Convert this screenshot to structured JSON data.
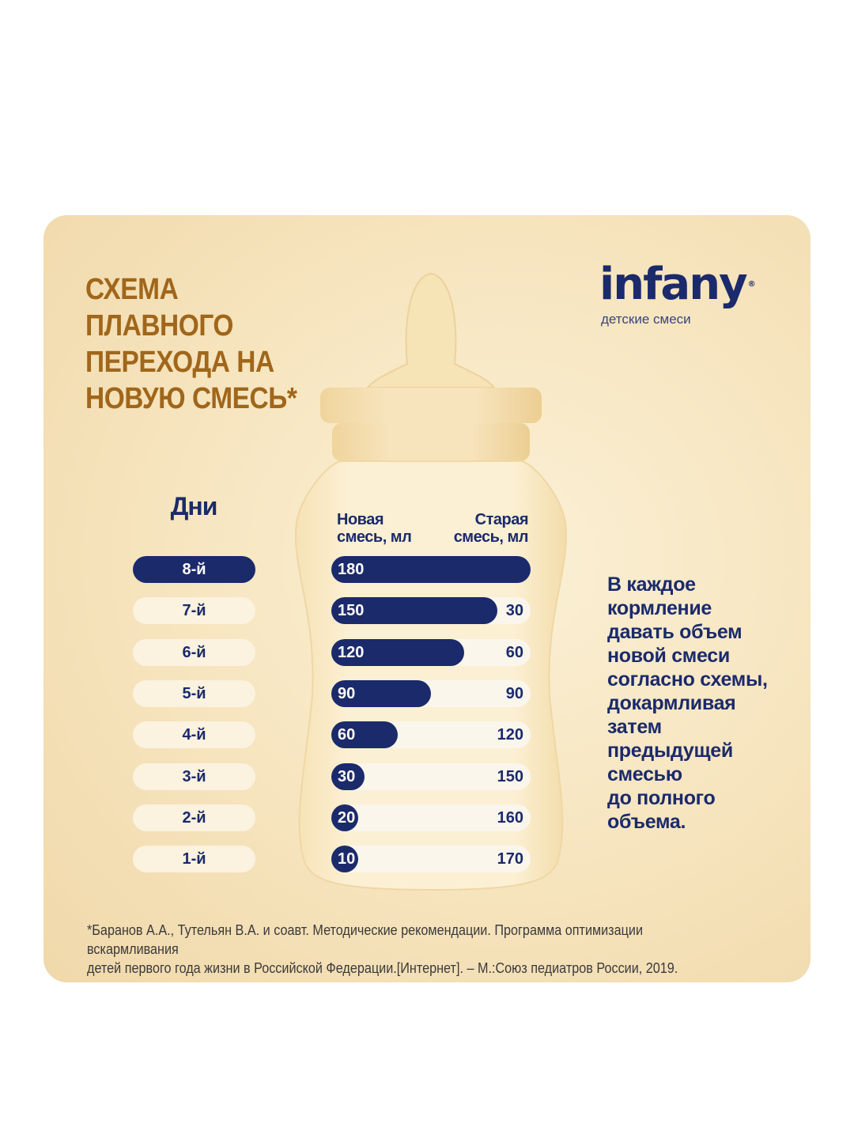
{
  "title": "СХЕМА ПЛАВНОГО\nПЕРЕХОДА НА\nНОВУЮ СМЕСЬ*",
  "brand": {
    "name": "infany",
    "mark": "®",
    "subtitle": "детские смеси"
  },
  "days_title": "Дни",
  "columns": {
    "new": "Новая\nсмесь, мл",
    "old": "Старая\nсмесь, мл"
  },
  "total_volume_ml": 180,
  "rows": [
    {
      "day": "8-й",
      "new": "180",
      "old": "0",
      "new_value": 180,
      "active": true
    },
    {
      "day": "7-й",
      "new": "150",
      "old": "30",
      "new_value": 150,
      "active": false
    },
    {
      "day": "6-й",
      "new": "120",
      "old": "60",
      "new_value": 120,
      "active": false
    },
    {
      "day": "5-й",
      "new": "90",
      "old": "90",
      "new_value": 90,
      "active": false
    },
    {
      "day": "4-й",
      "new": "60",
      "old": "120",
      "new_value": 60,
      "active": false
    },
    {
      "day": "3-й",
      "new": "30",
      "old": "150",
      "new_value": 30,
      "active": false
    },
    {
      "day": "2-й",
      "new": "20",
      "old": "160",
      "new_value": 20,
      "active": false
    },
    {
      "day": "1-й",
      "new": "10",
      "old": "170",
      "new_value": 10,
      "active": false
    }
  ],
  "instruction": "В каждое\nкормление\nдавать объем\nновой смеси\nсогласно схемы,\nдокармливая\nзатем\nпредыдущей\nсмесью\nдо полного\nобъема.",
  "footnote": "*Баранов А.А., Тутельян В.А. и соавт. Методические рекомендации. Программа оптимизации вскармливания\nдетей первого года жизни в Российской Федерации.[Интернет]. – М.:Союз педиатров России, 2019.",
  "colors": {
    "navy": "#1b2a6b",
    "title_brown": "#a0661a",
    "card": "#f6e4bd"
  }
}
